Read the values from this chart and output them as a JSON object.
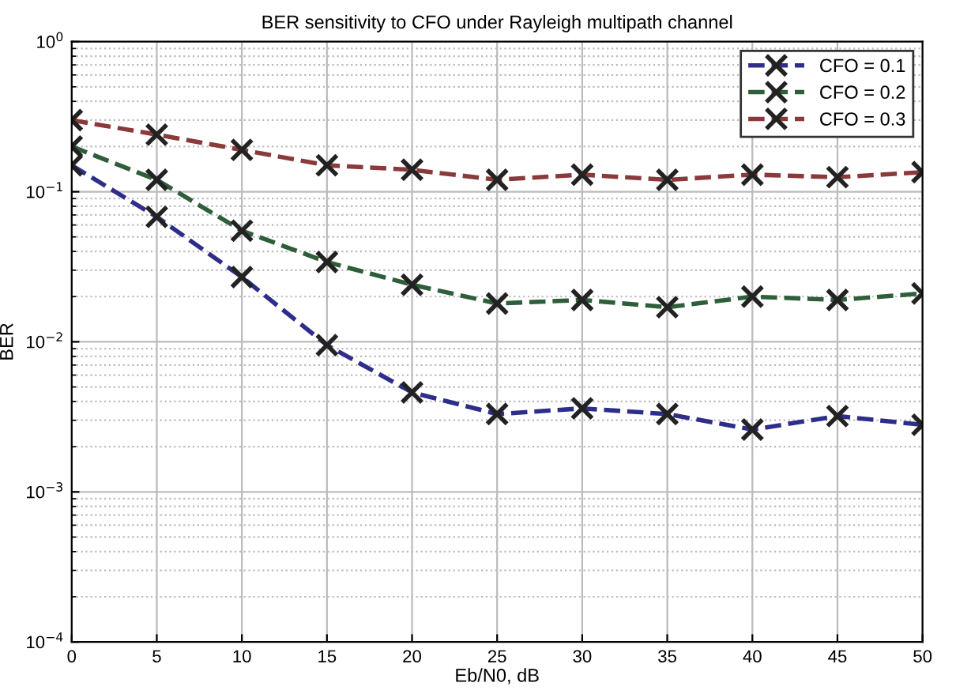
{
  "chart_data": {
    "type": "line",
    "title": "BER sensitivity to CFO under Rayleigh multipath channel",
    "xlabel": "Eb/N0, dB",
    "ylabel": "BER",
    "x": [
      0,
      5,
      10,
      15,
      20,
      25,
      30,
      35,
      40,
      45,
      50
    ],
    "series": [
      {
        "name": "CFO = 0.1",
        "color": "#2e2e8a",
        "values": [
          0.15,
          0.068,
          0.027,
          0.0095,
          0.0046,
          0.0033,
          0.0036,
          0.0033,
          0.0026,
          0.0032,
          0.0028
        ]
      },
      {
        "name": "CFO = 0.2",
        "color": "#2e5e3a",
        "values": [
          0.2,
          0.12,
          0.055,
          0.034,
          0.024,
          0.018,
          0.019,
          0.017,
          0.02,
          0.019,
          0.021
        ]
      },
      {
        "name": "CFO = 0.3",
        "color": "#8a3a3a",
        "values": [
          0.3,
          0.24,
          0.19,
          0.15,
          0.14,
          0.12,
          0.13,
          0.12,
          0.13,
          0.125,
          0.135
        ]
      }
    ],
    "log": "y",
    "xlim": [
      0,
      50
    ],
    "xticks": [
      0,
      5,
      10,
      15,
      20,
      25,
      30,
      35,
      40,
      45,
      50
    ],
    "ylim": [
      0.0001,
      1
    ],
    "yticks": [
      {
        "value": 0.0001,
        "label": "10$^{−4}$"
      },
      {
        "value": 0.001,
        "label": "10$^{−3}$"
      },
      {
        "value": 0.01,
        "label": "10$^{−2}$"
      },
      {
        "value": 0.1,
        "label": "10$^{−1}$"
      },
      {
        "value": 1,
        "label": "10$^{0}$"
      }
    ],
    "grid": true,
    "legend": "top right",
    "marker": "cross",
    "line_style": "dashed"
  }
}
